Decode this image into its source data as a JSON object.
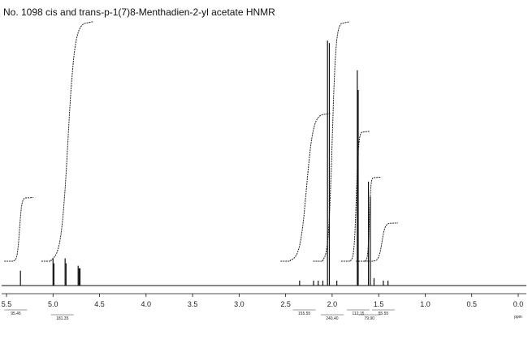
{
  "title": "No. 1098 cis and trans-p-1(7)8-Menthadien-2-yl acetate HNMR",
  "chart_data": {
    "type": "line",
    "title": "No. 1098 cis and trans-p-1(7)8-Menthadien-2-yl acetate HNMR",
    "xlabel": "",
    "ylabel": "",
    "x_unit_label": "ppm",
    "x_reversed": true,
    "xlim": [
      5.5,
      0.0
    ],
    "ticks": [
      {
        "value": 5.5,
        "label": "5.5"
      },
      {
        "value": 5.0,
        "label": "5.0"
      },
      {
        "value": 4.5,
        "label": "4.5"
      },
      {
        "value": 4.0,
        "label": "4.0"
      },
      {
        "value": 3.5,
        "label": "3.5"
      },
      {
        "value": 3.0,
        "label": "3.0"
      },
      {
        "value": 2.5,
        "label": "2.5"
      },
      {
        "value": 2.0,
        "label": "2.0"
      },
      {
        "value": 1.5,
        "label": "1.5"
      },
      {
        "value": 1.0,
        "label": "1.0"
      },
      {
        "value": 0.5,
        "label": "0.5"
      },
      {
        "value": 0.0,
        "label": "0.0"
      }
    ],
    "peaks": [
      {
        "ppm": 5.35,
        "height": 0.06
      },
      {
        "ppm": 5.0,
        "height": 0.11
      },
      {
        "ppm": 4.99,
        "height": 0.09
      },
      {
        "ppm": 4.87,
        "height": 0.11
      },
      {
        "ppm": 4.86,
        "height": 0.09
      },
      {
        "ppm": 4.73,
        "height": 0.08
      },
      {
        "ppm": 4.72,
        "height": 0.07
      },
      {
        "ppm": 4.71,
        "height": 0.07
      },
      {
        "ppm": 2.35,
        "height": 0.02
      },
      {
        "ppm": 2.2,
        "height": 0.02
      },
      {
        "ppm": 2.15,
        "height": 0.02
      },
      {
        "ppm": 2.1,
        "height": 0.02
      },
      {
        "ppm": 2.05,
        "height": 0.99
      },
      {
        "ppm": 2.03,
        "height": 0.98
      },
      {
        "ppm": 1.95,
        "height": 0.02
      },
      {
        "ppm": 1.73,
        "height": 0.87
      },
      {
        "ppm": 1.72,
        "height": 0.79
      },
      {
        "ppm": 1.61,
        "height": 0.42
      },
      {
        "ppm": 1.59,
        "height": 0.36
      },
      {
        "ppm": 1.55,
        "height": 0.03
      },
      {
        "ppm": 1.45,
        "height": 0.02
      },
      {
        "ppm": 1.4,
        "height": 0.02
      }
    ],
    "integrals": [
      {
        "from_ppm": 5.42,
        "to_ppm": 5.3,
        "start": 0.0,
        "end": 0.25
      },
      {
        "from_ppm": 5.02,
        "to_ppm": 4.66,
        "start": 0.0,
        "end": 0.94
      },
      {
        "from_ppm": 2.45,
        "to_ppm": 2.1,
        "start": 0.0,
        "end": 0.58
      },
      {
        "from_ppm": 2.1,
        "to_ppm": 1.9,
        "start": 0.0,
        "end": 0.94
      },
      {
        "from_ppm": 1.8,
        "to_ppm": 1.68,
        "start": 0.0,
        "end": 0.51
      },
      {
        "from_ppm": 1.64,
        "to_ppm": 1.56,
        "start": 0.0,
        "end": 0.33
      },
      {
        "from_ppm": 1.55,
        "to_ppm": 1.38,
        "start": 0.0,
        "end": 0.15
      }
    ],
    "integral_labels": [
      {
        "ppm": 5.4,
        "text": "95.45"
      },
      {
        "ppm": 4.9,
        "text": "181.35"
      },
      {
        "ppm": 2.3,
        "text": "155.55"
      },
      {
        "ppm": 2.0,
        "text": "240.40"
      },
      {
        "ppm": 1.72,
        "text": "112.15"
      },
      {
        "ppm": 1.6,
        "text": "79.90"
      },
      {
        "ppm": 1.45,
        "text": "55.55"
      }
    ]
  }
}
